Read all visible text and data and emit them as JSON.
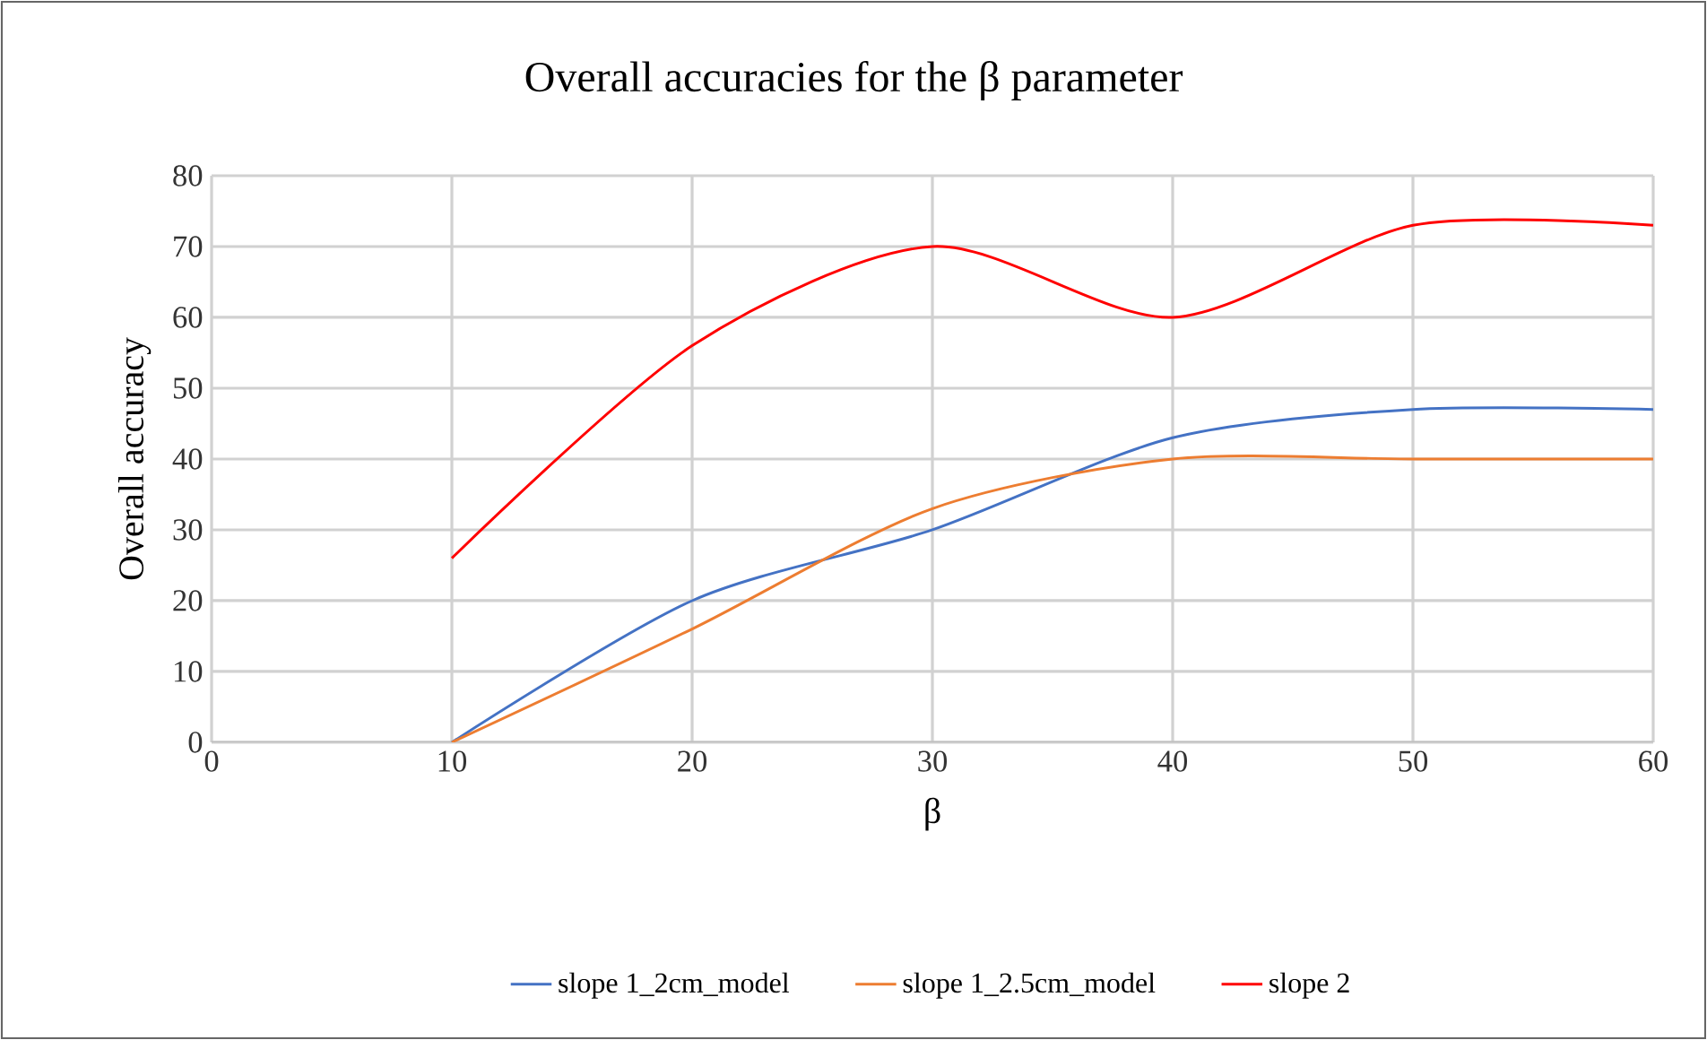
{
  "chart_data": {
    "type": "line",
    "title": "Overall accuracies for the β parameter",
    "xlabel": "β",
    "ylabel": "Overall accuracy",
    "x": [
      10,
      20,
      30,
      40,
      50,
      60
    ],
    "series": [
      {
        "name": "slope 1_2cm_model",
        "color": "#4472c4",
        "values": [
          0,
          20,
          30,
          43,
          47,
          47
        ]
      },
      {
        "name": "slope 1_2.5cm_model",
        "color": "#ed7d31",
        "values": [
          0,
          16,
          33,
          40,
          40,
          40
        ]
      },
      {
        "name": "slope 2",
        "color": "#ff0000",
        "values": [
          26,
          56,
          70,
          60,
          73,
          73
        ]
      }
    ],
    "xlim": [
      0,
      60
    ],
    "ylim": [
      0,
      80
    ],
    "xticks": [
      0,
      10,
      20,
      30,
      40,
      50,
      60
    ],
    "yticks": [
      0,
      10,
      20,
      30,
      40,
      50,
      60,
      70,
      80
    ],
    "grid": true,
    "legend": "bottom",
    "marker": "none",
    "line_style": "solid"
  }
}
